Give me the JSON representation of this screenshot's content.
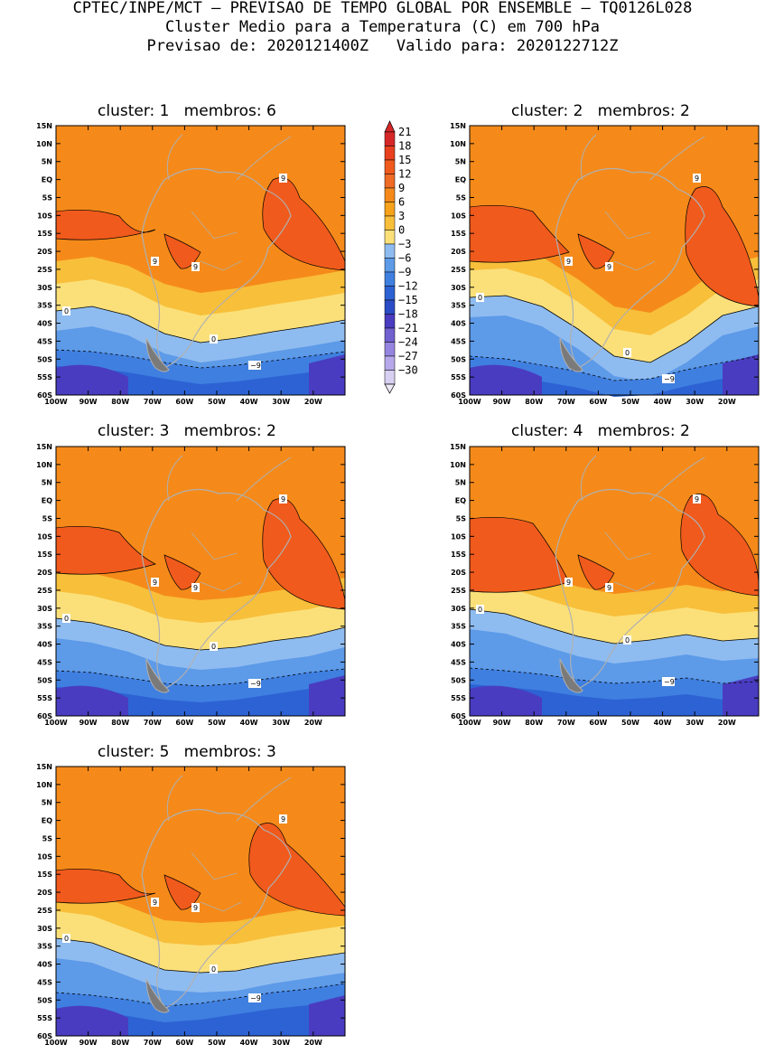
{
  "header": {
    "line1": "CPTEC/INPE/MCT – PREVISAO DE TEMPO GLOBAL POR ENSEMBLE – TQ0126L028",
    "line2": "Cluster Medio para a Temperatura (C) em 700 hPa",
    "line3": "Previsao de: 2020121400Z   Valido para: 2020122712Z"
  },
  "axes": {
    "lat_labels": [
      "15N",
      "10N",
      "5N",
      "EQ",
      "5S",
      "10S",
      "15S",
      "20S",
      "25S",
      "30S",
      "35S",
      "40S",
      "45S",
      "50S",
      "55S",
      "60S"
    ],
    "lon_labels": [
      "100W",
      "90W",
      "80W",
      "70W",
      "60W",
      "50W",
      "40W",
      "30W",
      "20W"
    ]
  },
  "colorbar": {
    "labels": [
      "21",
      "18",
      "15",
      "12",
      "9",
      "6",
      "3",
      "0",
      "−3",
      "−6",
      "−9",
      "−12",
      "−15",
      "−18",
      "−21",
      "−24",
      "−27",
      "−30"
    ],
    "colors": [
      "#d62728",
      "#e8401e",
      "#f05a1c",
      "#ef6b26",
      "#f58a1a",
      "#f7a21b",
      "#f8bf3a",
      "#fbe07a",
      "#8fbcf0",
      "#5d9ae8",
      "#3f7fe0",
      "#2d62d4",
      "#2a4cc6",
      "#4a3cc0",
      "#7060d0",
      "#9585e0",
      "#b6a8ea",
      "#d8d0f2"
    ]
  },
  "legend_colors": {
    "hot": "#f05a1c",
    "warm": "#f58a1a",
    "mild": "#f7a21b",
    "light": "#f8bf3a",
    "pale": "#fbe07a",
    "cool1": "#8fbcf0",
    "cool2": "#5d9ae8",
    "cool3": "#3f7fe0",
    "cool4": "#2d62d4",
    "cold": "#4a3cc0",
    "coast": "#b0b0b0"
  },
  "panels": [
    {
      "title": "cluster: 1   membros: 6",
      "labels": {
        "nine_a": "9",
        "nine_b": "9",
        "nine_c": "9",
        "zero_a": "0",
        "zero_b": "0",
        "neg": "−9"
      }
    },
    {
      "title": "cluster: 2   membros: 2",
      "labels": {
        "nine_a": "9",
        "nine_b": "9",
        "nine_c": "9",
        "zero_a": "0",
        "zero_b": "0",
        "neg": "−9"
      }
    },
    {
      "title": "cluster: 3   membros: 2",
      "labels": {
        "nine_a": "9",
        "nine_b": "9",
        "nine_c": "9",
        "zero_a": "0",
        "zero_b": "0",
        "neg": "−9"
      }
    },
    {
      "title": "cluster: 4   membros: 2",
      "labels": {
        "nine_a": "9",
        "nine_b": "9",
        "nine_c": "9",
        "zero_a": "0",
        "zero_b": "0",
        "neg": "−9"
      }
    },
    {
      "title": "cluster: 5   membros: 3",
      "labels": {
        "nine_a": "9",
        "nine_b": "9",
        "nine_c": "9",
        "zero_a": "0",
        "zero_b": "0",
        "neg": "−9"
      }
    }
  ]
}
